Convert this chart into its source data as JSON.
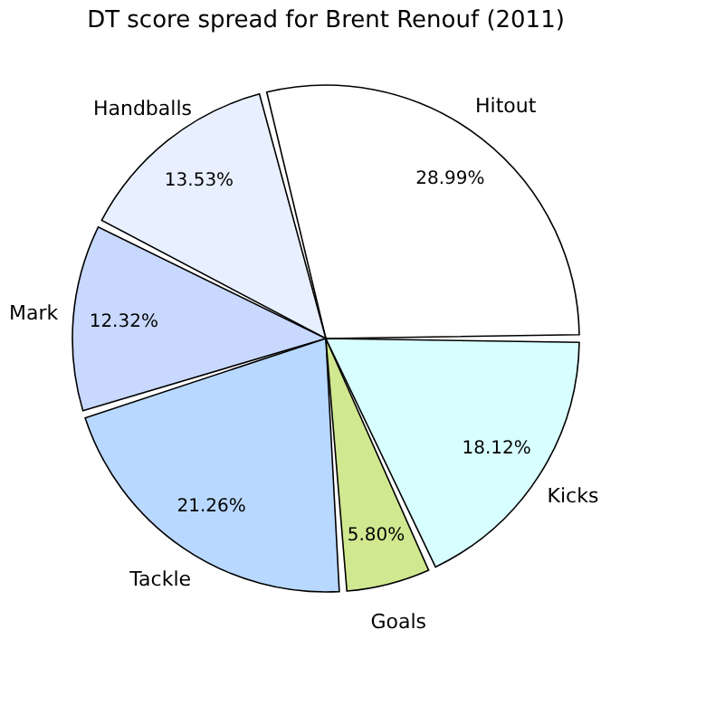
{
  "chart_data": {
    "type": "pie",
    "title": "DT score spread for Brent Renouf (2011)",
    "categories": [
      "Hitout",
      "Handballs",
      "Mark",
      "Tackle",
      "Goals",
      "Kicks"
    ],
    "values": [
      28.99,
      13.53,
      12.32,
      21.26,
      5.8,
      18.12
    ],
    "value_labels": [
      "28.99%",
      "13.53%",
      "12.32%",
      "21.26%",
      "5.80%",
      "18.12%"
    ],
    "colors": [
      "#ffffff",
      "#e8f0ff",
      "#c8d8ff",
      "#b8d8ff",
      "#d0e890",
      "#d8ffff"
    ],
    "legend": false
  }
}
